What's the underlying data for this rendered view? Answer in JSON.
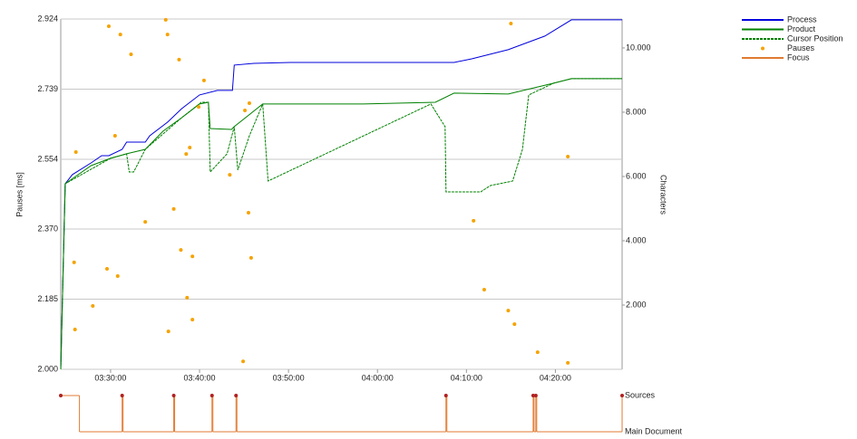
{
  "chart_data": {
    "type": "line",
    "y_label": "Pauses [ms]",
    "y2_label": "Characters",
    "xlim": [
      204.4,
      267.5
    ],
    "xticks": [
      {
        "value": 210,
        "label": "03:30:00"
      },
      {
        "value": 220,
        "label": "03:40:00"
      },
      {
        "value": 230,
        "label": "03:50:00"
      },
      {
        "value": 240,
        "label": "04:00:00"
      },
      {
        "value": 250,
        "label": "04:10:00"
      },
      {
        "value": 260,
        "label": "04:20:00"
      }
    ],
    "ylim": [
      2000,
      2924
    ],
    "yticks": [
      {
        "value": 2000,
        "label": "2.000"
      },
      {
        "value": 2185,
        "label": "2.185"
      },
      {
        "value": 2370,
        "label": "2.370"
      },
      {
        "value": 2554,
        "label": "2.554"
      },
      {
        "value": 2739,
        "label": "2.739"
      },
      {
        "value": 2924,
        "label": "2.924"
      }
    ],
    "y2lim": [
      0,
      10900
    ],
    "y2ticks": [
      {
        "value": 2000,
        "label": "2.000"
      },
      {
        "value": 4000,
        "label": "4.000"
      },
      {
        "value": 6000,
        "label": "6.000"
      },
      {
        "value": 8000,
        "label": "8.000"
      },
      {
        "value": 10000,
        "label": "10.000"
      }
    ],
    "grid": true,
    "legend": "top-right",
    "focus_levels": [
      "Main Document",
      "Sources"
    ],
    "series": [
      {
        "name": "Process",
        "color": "#0000dd",
        "style": "solid",
        "axis": "y2",
        "x": [
          204.4,
          204.9,
          205.7,
          207.8,
          209.0,
          209.8,
          211.3,
          211.8,
          213.9,
          214.4,
          216.4,
          218.0,
          220.0,
          222.0,
          223.7,
          223.9,
          226.1,
          230.2,
          238.4,
          248.6,
          250.6,
          254.7,
          258.8,
          261.8,
          267.5
        ],
        "values": [
          0,
          5775,
          6057,
          6423,
          6648,
          6648,
          6845,
          7070,
          7070,
          7268,
          7690,
          8113,
          8536,
          8677,
          8677,
          9465,
          9521,
          9549,
          9549,
          9549,
          9662,
          9944,
          10367,
          10874,
          10874
        ]
      },
      {
        "name": "Product",
        "color": "#008000",
        "style": "solid",
        "axis": "y2",
        "x": [
          204.4,
          204.9,
          207.8,
          210.0,
          211.8,
          213.9,
          215.9,
          218.0,
          220.0,
          221.0,
          221.2,
          223.6,
          223.9,
          227.1,
          238.4,
          246.5,
          248.6,
          254.7,
          259.8,
          261.8,
          267.5
        ],
        "values": [
          0,
          5775,
          6338,
          6564,
          6705,
          6845,
          7409,
          7831,
          8254,
          8310,
          7493,
          7465,
          7550,
          8254,
          8254,
          8310,
          8592,
          8564,
          8902,
          9043,
          9043
        ]
      },
      {
        "name": "Cursor Position",
        "color": "#008000",
        "style": "dashed",
        "axis": "y2",
        "x": [
          204.4,
          204.9,
          210.0,
          211.8,
          212.1,
          212.6,
          213.9,
          218.0,
          220.2,
          221.0,
          221.2,
          223.1,
          223.9,
          224.3,
          225.6,
          227.1,
          227.7,
          246.0,
          247.6,
          247.7,
          251.6,
          252.7,
          255.2,
          256.3,
          257.0,
          259.8,
          261.8,
          267.5
        ],
        "values": [
          0,
          5775,
          6564,
          6705,
          6141,
          6141,
          6845,
          7831,
          8310,
          8310,
          6141,
          6705,
          7550,
          6198,
          7268,
          8254,
          5859,
          8254,
          7550,
          5521,
          5521,
          5718,
          5859,
          6845,
          8536,
          8902,
          9043,
          9043
        ]
      },
      {
        "name": "Pauses",
        "color": "#f5a300",
        "style": "dots",
        "axis": "y",
        "x": [
          209.8,
          211.1,
          212.3,
          216.2,
          216.4,
          217.7,
          220.5,
          219.9,
          206.1,
          210.5,
          218.5,
          218.9,
          223.4,
          225.1,
          225.6,
          213.9,
          217.1,
          205.9,
          209.6,
          210.8,
          217.9,
          219.2,
          218.6,
          208.0,
          219.2,
          206.0,
          216.5,
          225.5,
          225.8,
          224.9,
          250.8,
          252.0,
          254.7,
          255.4,
          258.0,
          261.4,
          255.0,
          261.4
        ],
        "values": [
          2905,
          2883,
          2831,
          2922,
          2883,
          2817,
          2762,
          2692,
          2573,
          2616,
          2568,
          2585,
          2513,
          2683,
          2702,
          2389,
          2423,
          2282,
          2265,
          2246,
          2315,
          2298,
          2189,
          2167,
          2131,
          2105,
          2100,
          2413,
          2294,
          2021,
          2392,
          2210,
          2155,
          2119,
          2045,
          2017,
          2912,
          2561
        ]
      },
      {
        "name": "Focus",
        "color": "#e07a30",
        "style": "step",
        "axis": "focus",
        "x": [
          204.4,
          206.5,
          211.3,
          211.4,
          217.1,
          217.2,
          221.4,
          221.5,
          224.1,
          224.2,
          247.7,
          247.8,
          257.5,
          257.6,
          257.8,
          257.9,
          267.5
        ],
        "values": [
          1,
          0,
          1,
          0,
          1,
          0,
          1,
          0,
          1,
          0,
          1,
          0,
          1,
          0,
          1,
          0,
          1
        ]
      }
    ]
  }
}
